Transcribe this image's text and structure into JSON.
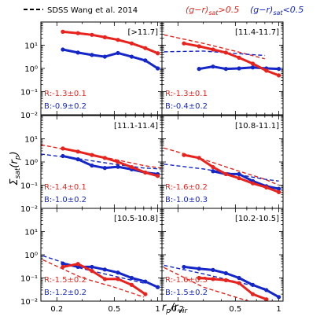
{
  "legend": {
    "dashed_label": "SDSS Wang et al. 2014",
    "red_label_main": "(g−r)",
    "red_label_sub": "sat",
    "red_label_cond": ">0.5",
    "blue_label_main": "(g−r)",
    "blue_label_sub": "sat",
    "blue_label_cond": "<0.5"
  },
  "colors": {
    "red": "#e8231d",
    "blue": "#1426c8",
    "axis": "#000000"
  },
  "ylabel": {
    "main": "Σ",
    "sub": "sat",
    "arg": "(r",
    "arg_sub": "p",
    "close": ")"
  },
  "xlabel": {
    "main": "r",
    "sub1": "p",
    "slash": "/r",
    "sub2": "vir"
  },
  "chart_data": {
    "type": "line",
    "xscale": "log",
    "yscale": "log",
    "xlim": [
      0.155,
      1.07
    ],
    "ylim": [
      0.01,
      100
    ],
    "x_ticks": [
      0.2,
      0.5,
      1
    ],
    "x_tick_labels": [
      "0.2",
      "0.5",
      "1"
    ],
    "y_ticks": [
      0.01,
      0.1,
      1,
      10
    ],
    "y_tick_labels": [
      "10⁻²",
      "10⁻¹",
      "10⁰",
      "10¹"
    ],
    "panels": [
      {
        "label": "[>11.7]",
        "red_slope": "R:-1.3±0.1",
        "blue_slope": "B:-0.9±0.2",
        "red": {
          "x": [
            0.22,
            0.28,
            0.35,
            0.43,
            0.53,
            0.66,
            0.82,
            1.0
          ],
          "y": [
            38,
            33,
            28,
            22,
            17,
            12,
            7.5,
            4.5
          ]
        },
        "blue": {
          "x": [
            0.22,
            0.28,
            0.35,
            0.43,
            0.53,
            0.66,
            0.82,
            1.0
          ],
          "y": [
            6.5,
            4.8,
            3.8,
            3.2,
            4.6,
            3.2,
            2.2,
            1.0
          ]
        }
      },
      {
        "label": "[11.4-11.7]",
        "red_slope": "R:-1.3±0.1",
        "blue_slope": "B:-0.4±0.2",
        "red": {
          "x": [
            0.22,
            0.28,
            0.35,
            0.43,
            0.53,
            0.66,
            0.82,
            1.0
          ],
          "y": [
            12,
            9,
            6.5,
            4.8,
            2.9,
            1.6,
            0.8,
            0.5
          ]
        },
        "blue": {
          "x": [
            0.28,
            0.35,
            0.43,
            0.53,
            0.66,
            0.82,
            1.0
          ],
          "y": [
            0.95,
            1.2,
            0.95,
            1.0,
            1.1,
            1.0,
            0.95
          ]
        },
        "red_dashed": {
          "x": [
            0.16,
            0.3,
            0.5,
            0.8
          ],
          "y": [
            28,
            12,
            5.5,
            2.6
          ]
        },
        "blue_dashed": {
          "x": [
            0.16,
            0.3,
            0.5,
            0.8
          ],
          "y": [
            5.2,
            5.6,
            4.4,
            3.6
          ]
        }
      },
      {
        "label": "[11.1-11.4]",
        "red_slope": "R:-1.4±0.1",
        "blue_slope": "B:-1.0±0.2",
        "red": {
          "x": [
            0.22,
            0.28,
            0.35,
            0.43,
            0.53,
            0.66,
            0.82,
            1.0
          ],
          "y": [
            3.8,
            2.8,
            2.0,
            1.5,
            1.0,
            0.6,
            0.35,
            0.25
          ]
        },
        "blue": {
          "x": [
            0.22,
            0.28,
            0.35,
            0.43,
            0.53,
            0.66,
            0.82,
            1.0
          ],
          "y": [
            1.8,
            1.3,
            0.7,
            0.55,
            0.62,
            0.48,
            0.35,
            0.3
          ]
        },
        "red_dashed": {
          "x": [
            0.155,
            0.3,
            0.5,
            0.8,
            1.05
          ],
          "y": [
            5.5,
            2.5,
            1.3,
            0.7,
            0.55
          ]
        },
        "blue_dashed": {
          "x": [
            0.155,
            0.3,
            0.5,
            0.8,
            1.05
          ],
          "y": [
            2.2,
            1.3,
            0.8,
            0.55,
            0.5
          ]
        }
      },
      {
        "label": "[10.8-11.1]",
        "red_slope": "R:-1.6±0.2",
        "blue_slope": "B:-1.0±0.3",
        "red": {
          "x": [
            0.22,
            0.28,
            0.35,
            0.43,
            0.53,
            0.66,
            0.82,
            1.0
          ],
          "y": [
            2.0,
            1.5,
            0.6,
            0.3,
            0.2,
            0.12,
            0.08,
            0.05
          ]
        },
        "blue": {
          "x": [
            0.35,
            0.43,
            0.53,
            0.66,
            0.82,
            1.0
          ],
          "y": [
            0.4,
            0.3,
            0.3,
            0.15,
            0.09,
            0.07
          ]
        },
        "red_dashed": {
          "x": [
            0.16,
            0.3,
            0.5,
            0.8,
            1.0
          ],
          "y": [
            4.0,
            1.3,
            0.45,
            0.18,
            0.1
          ]
        },
        "blue_dashed": {
          "x": [
            0.16,
            0.3,
            0.5,
            0.8,
            1.0
          ],
          "y": [
            0.8,
            0.5,
            0.3,
            0.18,
            0.15
          ]
        }
      },
      {
        "label": "[10.5-10.8]",
        "red_slope": "R:-1.5±0.2",
        "blue_slope": "B:-1.2±0.2",
        "red": {
          "x": [
            0.22,
            0.28,
            0.35,
            0.43,
            0.53,
            0.66,
            0.82
          ],
          "y": [
            0.3,
            0.4,
            0.2,
            0.09,
            0.09,
            0.05,
            0.02
          ]
        },
        "blue": {
          "x": [
            0.22,
            0.28,
            0.35,
            0.43,
            0.53,
            0.66,
            0.82,
            1.0
          ],
          "y": [
            0.42,
            0.3,
            0.3,
            0.23,
            0.17,
            0.1,
            0.07,
            0.04
          ]
        },
        "red_dashed": {
          "x": [
            0.16,
            0.3,
            0.5,
            0.8
          ],
          "y": [
            0.6,
            0.1,
            0.04,
            0.015
          ]
        },
        "blue_dashed": {
          "x": [
            0.16,
            0.3,
            0.5,
            0.8
          ],
          "y": [
            0.9,
            0.25,
            0.12,
            0.06
          ]
        }
      },
      {
        "label": "[10.2-10.5]",
        "red_slope": "R:-1.6±0.3",
        "blue_slope": "B:-1.5±0.2",
        "red": {
          "x": [
            0.28,
            0.35,
            0.43,
            0.53,
            0.66,
            0.82
          ],
          "y": [
            0.1,
            0.09,
            0.08,
            0.06,
            0.02,
            0.012
          ]
        },
        "blue": {
          "x": [
            0.22,
            0.28,
            0.35,
            0.43,
            0.53,
            0.66,
            0.82,
            1.0
          ],
          "y": [
            0.3,
            0.25,
            0.22,
            0.16,
            0.1,
            0.05,
            0.03,
            0.015
          ]
        },
        "red_dashed": {
          "x": [
            0.16,
            0.3,
            0.5,
            0.8
          ],
          "y": [
            0.28,
            0.04,
            0.015,
            0.006
          ]
        },
        "blue_dashed": {
          "x": [
            0.16,
            0.3,
            0.5,
            0.8
          ],
          "y": [
            0.35,
            0.15,
            0.07,
            0.035
          ]
        }
      }
    ]
  }
}
